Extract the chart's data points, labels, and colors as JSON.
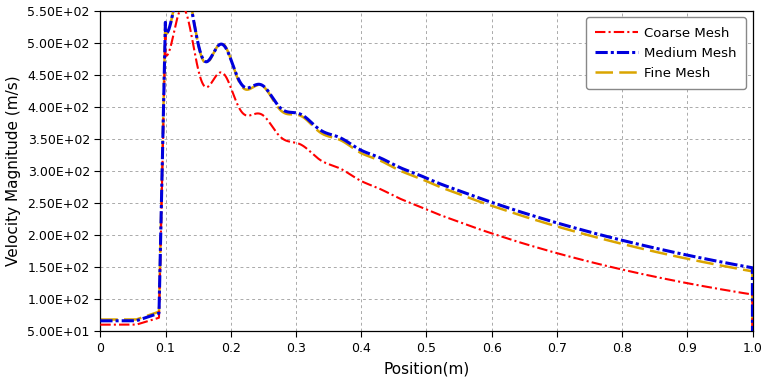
{
  "title": "",
  "xlabel": "Position(m)",
  "ylabel": "Velocity Magnitude (m/s)",
  "xlim": [
    0,
    1.0
  ],
  "ylim": [
    50,
    550
  ],
  "yticks": [
    50,
    100,
    150,
    200,
    250,
    300,
    350,
    400,
    450,
    500,
    550
  ],
  "xticks": [
    0,
    0.1,
    0.2,
    0.3,
    0.4,
    0.5,
    0.6,
    0.7,
    0.8,
    0.9,
    1.0
  ],
  "coarse_color": "#FF0000",
  "medium_color": "#0000DD",
  "fine_color": "#DAA500",
  "background_color": "#ffffff",
  "grid_color": "#aaaaaa"
}
